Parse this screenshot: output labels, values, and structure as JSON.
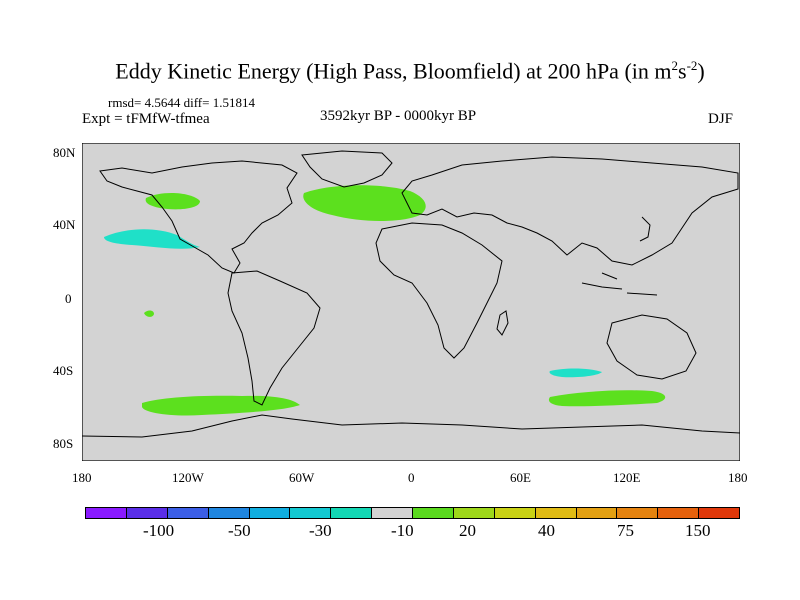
{
  "title": {
    "main": "Eddy Kinetic Energy (High Pass, Bloomfield) at 200 hPa (in m",
    "sup1": "2",
    "mid": "s",
    "sup2": "-2",
    "end": ")"
  },
  "stats": {
    "rmsd_line": "rmsd= 4.5644 diff= 1.51814"
  },
  "expt": "Expt = tFMfW-tfmea",
  "period": "3592kyr BP - 0000kyr BP",
  "season": "DJF",
  "lat_labels": [
    "80N",
    "40N",
    "0",
    "40S",
    "80S"
  ],
  "lon_labels": [
    "180",
    "120W",
    "60W",
    "0",
    "60E",
    "120E",
    "180"
  ],
  "colorbar": {
    "colors": [
      "#8a1aff",
      "#5a2ee8",
      "#3b5ee6",
      "#1f86e0",
      "#10aee0",
      "#12c9d2",
      "#12d7b4",
      "#d3d3d3",
      "#5ad91e",
      "#9ed71a",
      "#c9d215",
      "#e0bb14",
      "#e3a012",
      "#e5830f",
      "#e5610c",
      "#e0380a"
    ],
    "labels": [
      "-100",
      "-50",
      "-30",
      "-10",
      "20",
      "40",
      "75",
      "150"
    ]
  },
  "anomaly_colors": {
    "cyan": "#1fe0c8",
    "green": "#5ce01e"
  }
}
